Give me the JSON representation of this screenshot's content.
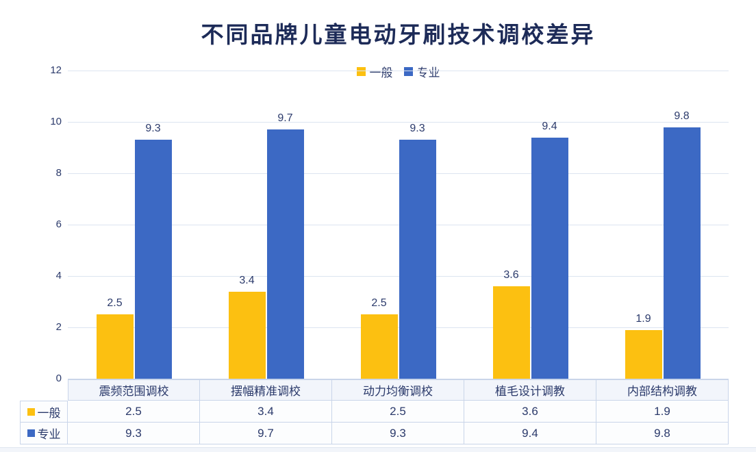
{
  "page": {
    "title": "不同品牌儿童电动牙刷技术调校差异"
  },
  "chart_data": {
    "type": "bar",
    "title": "不同品牌儿童电动牙刷技术调校差异",
    "categories": [
      "震频范围调校",
      "摆幅精准调校",
      "动力均衡调校",
      "植毛设计调教",
      "内部结构调教"
    ],
    "series": [
      {
        "name": "一般",
        "color": "#FCC011",
        "values": [
          2.5,
          3.4,
          2.5,
          3.6,
          1.9
        ]
      },
      {
        "name": "专业",
        "color": "#3C69C4",
        "values": [
          9.3,
          9.7,
          9.3,
          9.4,
          9.8
        ]
      }
    ],
    "xlabel": "",
    "ylabel": "",
    "ylim": [
      0,
      12
    ],
    "yticks": [
      0,
      2,
      4,
      6,
      8,
      10,
      12
    ],
    "grid": true,
    "legend_position": "top-center",
    "data_labels": "above-bars",
    "data_table": true
  },
  "colors": {
    "title_text": "#1D2B58",
    "label_text": "#2B3A6B",
    "gridline": "#DCE4F0",
    "table_border": "#C9D5E9",
    "table_header_bg": "#F2F5FB",
    "table_cell_bg": "#FCFDFE"
  }
}
